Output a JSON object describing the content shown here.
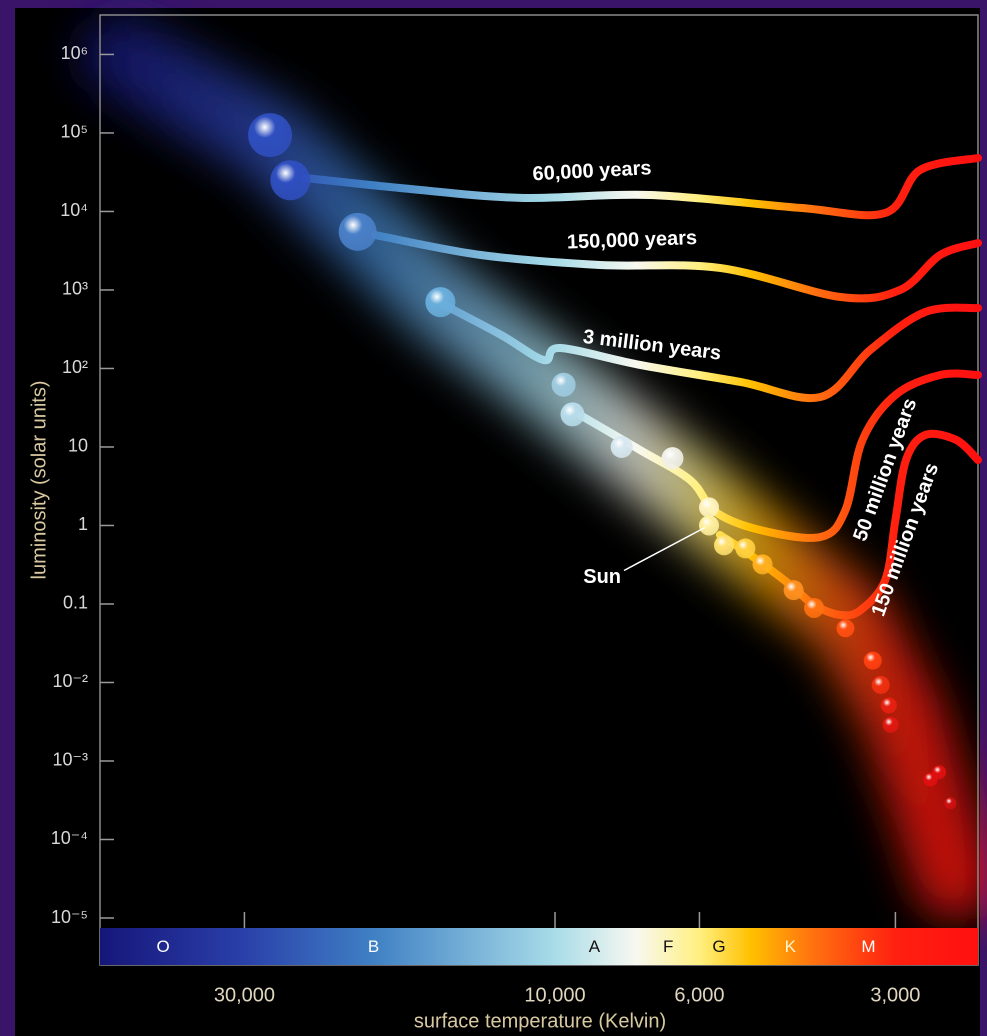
{
  "chart_data": {
    "type": "scatter",
    "x_label": "surface temperature (Kelvin)",
    "y_label": "luminosity (solar units)",
    "log_x": true,
    "log_y": true,
    "xlim": [
      50000,
      2240
    ],
    "ylim": [
      1e-05,
      3000000
    ],
    "xticks": [
      {
        "value": 30000,
        "label": "30,000"
      },
      {
        "value": 10000,
        "label": "10,000"
      },
      {
        "value": 6000,
        "label": "6,000"
      },
      {
        "value": 3000,
        "label": "3,000"
      }
    ],
    "yticks": [
      {
        "value": 1000000,
        "label": "10⁶"
      },
      {
        "value": 100000,
        "label": "10⁵"
      },
      {
        "value": 10000,
        "label": "10⁴"
      },
      {
        "value": 1000,
        "label": "10³"
      },
      {
        "value": 100,
        "label": "10²"
      },
      10,
      1,
      0.1,
      {
        "value": 0.01,
        "label": "10⁻²"
      },
      {
        "value": 0.001,
        "label": "10⁻³"
      },
      {
        "value": 0.0001,
        "label": "10⁻⁴"
      },
      {
        "value": 1e-05,
        "label": "10⁻⁵"
      }
    ],
    "colormap": [
      {
        "temperature": 50000,
        "color": "#16167a"
      },
      {
        "temperature": 30000,
        "color": "#2a40aa"
      },
      {
        "temperature": 19000,
        "color": "#3f80c4"
      },
      {
        "temperature": 10000,
        "color": "#a8dce8"
      },
      {
        "temperature": 7500,
        "color": "#f8f8f0"
      },
      {
        "temperature": 6000,
        "color": "#fff080"
      },
      {
        "temperature": 5000,
        "color": "#ffc000"
      },
      {
        "temperature": 4000,
        "color": "#ff7010"
      },
      {
        "temperature": 3000,
        "color": "#ff2010"
      },
      {
        "temperature": 2240,
        "color": "#ff1010"
      }
    ],
    "spectral_classes": [
      {
        "label": "O",
        "temperature": 40000,
        "text_color": "#ffffff"
      },
      {
        "label": "B",
        "temperature": 19000,
        "text_color": "#ffffff"
      },
      {
        "label": "A",
        "temperature": 8700,
        "text_color": "#111111"
      },
      {
        "label": "F",
        "temperature": 6700,
        "text_color": "#111111"
      },
      {
        "label": "G",
        "temperature": 5600,
        "text_color": "#111111"
      },
      {
        "label": "K",
        "temperature": 4350,
        "text_color": "#fff6d0"
      },
      {
        "label": "M",
        "temperature": 3300,
        "text_color": "#ffffff"
      }
    ],
    "stars": {
      "x": [
        27400,
        25500,
        20100,
        15000,
        9700,
        9400,
        7900,
        6600,
        5800,
        5800,
        5500,
        5100,
        4800,
        4300,
        4000,
        3580,
        3250,
        3160,
        3070,
        3050,
        2570,
        2650,
        2470
      ],
      "y": [
        94000,
        25000,
        5500,
        700,
        62,
        26,
        10,
        7.2,
        1.7,
        1.0,
        0.56,
        0.51,
        0.32,
        0.15,
        0.089,
        0.049,
        0.019,
        0.0093,
        0.0051,
        0.0029,
        0.00072,
        0.00058,
        0.00029
      ],
      "sizes": [
        22,
        20,
        19,
        15,
        12,
        12,
        11,
        11,
        10,
        10,
        10,
        10,
        10,
        10,
        10,
        9,
        9,
        9,
        8,
        8,
        7,
        7,
        6
      ],
      "colors": [
        "#2f4fc0",
        "#2f4fc0",
        "#4a80c8",
        "#6aaedc",
        "#9fcbe0",
        "#b8dcea",
        "#d8e8f0",
        "#f0f0e8",
        "#fff4c0",
        "#fff0a0",
        "#ffe070",
        "#ffd040",
        "#ffb020",
        "#ff9020",
        "#ff7010",
        "#ff5010",
        "#ff4010",
        "#f03010",
        "#e82010",
        "#e01810",
        "#e01010",
        "#e01010",
        "#d01010"
      ]
    },
    "tracks": [
      {
        "name": "60,000 years",
        "x": [
          2240,
          2750,
          3110,
          4200,
          7140,
          11300,
          17300,
          24200
        ],
        "y": [
          48000,
          33700,
          9570,
          11100,
          16200,
          14900,
          19900,
          26700
        ]
      },
      {
        "name": "150,000 years",
        "x": [
          2240,
          2560,
          2950,
          3640,
          5580,
          8530,
          13000,
          18900
        ],
        "y": [
          3960,
          2790,
          1000,
          813,
          1910,
          2080,
          2790,
          5010
        ]
      },
      {
        "name": "3 million years",
        "x": [
          2240,
          2700,
          3280,
          3910,
          5190,
          7400,
          9820,
          10400,
          12100,
          14800
        ],
        "y": [
          589,
          524,
          172,
          43.3,
          67.3,
          111,
          182,
          128,
          267,
          644
        ]
      },
      {
        "name": "50 million years",
        "x": [
          2240,
          2560,
          3000,
          3370,
          3580,
          3910,
          4840,
          5670,
          6200,
          7400,
          9150
        ],
        "y": [
          82.6,
          82.6,
          45.9,
          12.3,
          1.57,
          0.713,
          0.875,
          1.49,
          3.79,
          9.14,
          25.5
        ]
      },
      {
        "name": "150 million years",
        "x": [
          2240,
          2420,
          2700,
          2890,
          3000,
          3110,
          3390,
          3640,
          4000,
          4350,
          5010,
          5580
        ],
        "y": [
          6.82,
          12.3,
          14.2,
          6.82,
          1.17,
          0.202,
          0.0838,
          0.0724,
          0.097,
          0.175,
          0.421,
          0.757
        ]
      }
    ],
    "annotations": [
      {
        "text": "Sun",
        "x": 5800,
        "y": 1.0
      }
    ]
  }
}
